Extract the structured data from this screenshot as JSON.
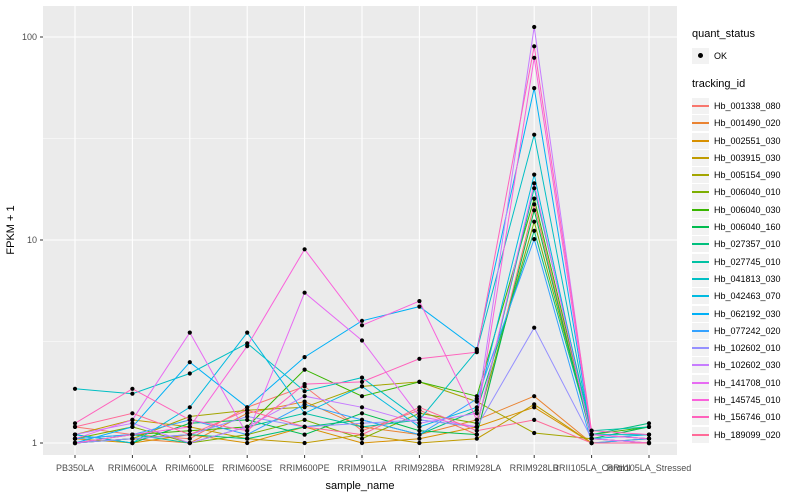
{
  "chart_data": {
    "type": "line",
    "title": "",
    "xlabel": "sample_name",
    "ylabel": "FPKM + 1",
    "y_scale": "log10",
    "y_ticks": [
      "1",
      "10",
      "100"
    ],
    "y_tick_values": [
      1,
      10,
      100
    ],
    "y_minor_values": [
      3.1623,
      31.623
    ],
    "ylim_log": [
      0.9,
      141
    ],
    "grid": "on",
    "panel_bg": "#EBEBEB",
    "grid_color": "#FFFFFF",
    "point_color": "#000000",
    "axis_text_color": "#4D4D4D",
    "legend_position": "right",
    "categories": [
      "PB350LA",
      "RRIM600LA",
      "RRIM600LE",
      "RRIM600SE",
      "RRIM600PE",
      "RRIM901LA",
      "RRIM928BA",
      "RRIM928LA",
      "RRIM928LB",
      "RRII105LA_Control",
      "RRII105LA_Stressed"
    ],
    "legend": {
      "quant_status_title": "quant_status",
      "quant_status_entries": [
        "OK"
      ],
      "tracking_id_title": "tracking_id"
    },
    "series": [
      {
        "name": "Hb_001338_080",
        "color": "#F8766D",
        "values": [
          1.2,
          1.1,
          1.05,
          1.5,
          1.9,
          1.15,
          1.45,
          1.1,
          15,
          1.05,
          1.0
        ]
      },
      {
        "name": "Hb_001490_020",
        "color": "#EA8331",
        "values": [
          1.0,
          1.05,
          1.0,
          1.4,
          1.6,
          1.2,
          1.1,
          1.3,
          1.7,
          1.0,
          1.0
        ]
      },
      {
        "name": "Hb_002551_030",
        "color": "#D89000",
        "values": [
          1.05,
          1.0,
          1.1,
          1.0,
          1.2,
          1.0,
          1.05,
          1.2,
          1.5,
          1.0,
          1.0
        ]
      },
      {
        "name": "Hb_003915_030",
        "color": "#C09B00",
        "values": [
          1.1,
          1.3,
          1.2,
          1.05,
          1.0,
          1.1,
          1.0,
          1.05,
          1.55,
          1.0,
          1.05
        ]
      },
      {
        "name": "Hb_005154_090",
        "color": "#A3A500",
        "values": [
          1.0,
          1.05,
          1.35,
          1.45,
          1.5,
          1.9,
          2.0,
          1.6,
          1.12,
          1.05,
          1.0
        ]
      },
      {
        "name": "Hb_006040_010",
        "color": "#7CAE00",
        "values": [
          1.05,
          1.2,
          1.0,
          1.1,
          1.3,
          1.05,
          1.4,
          1.25,
          12.3,
          1.1,
          1.05
        ]
      },
      {
        "name": "Hb_006040_030",
        "color": "#39B600",
        "values": [
          1.0,
          1.1,
          1.15,
          1.2,
          2.3,
          1.7,
          2.0,
          1.7,
          16,
          1.1,
          1.2
        ]
      },
      {
        "name": "Hb_006040_160",
        "color": "#00BB4E",
        "values": [
          1.1,
          1.0,
          1.25,
          1.3,
          1.1,
          1.4,
          1.15,
          1.1,
          14,
          1.05,
          1.2
        ]
      },
      {
        "name": "Hb_027357_010",
        "color": "#00BF7D",
        "values": [
          1.0,
          1.05,
          1.1,
          1.05,
          1.2,
          1.3,
          1.1,
          1.45,
          11.1,
          1.1,
          1.25
        ]
      },
      {
        "name": "Hb_027745_010",
        "color": "#00C1A3",
        "values": [
          1.05,
          1.1,
          1.0,
          1.2,
          1.4,
          1.2,
          1.3,
          1.2,
          18,
          1.15,
          1.2
        ]
      },
      {
        "name": "Hb_041813_030",
        "color": "#00BFC4",
        "values": [
          1.85,
          1.75,
          2.2,
          3.1,
          1.8,
          2.1,
          1.3,
          2.85,
          33,
          1.1,
          1.1
        ]
      },
      {
        "name": "Hb_042463_070",
        "color": "#00BAE0",
        "values": [
          1.1,
          1.0,
          1.5,
          3.5,
          1.4,
          1.9,
          1.2,
          1.5,
          21,
          1.05,
          1.1
        ]
      },
      {
        "name": "Hb_062192_030",
        "color": "#00B0F6",
        "values": [
          1.0,
          1.2,
          2.5,
          1.5,
          2.65,
          4.0,
          4.7,
          2.9,
          56,
          1.1,
          1.05
        ]
      },
      {
        "name": "Hb_077242_020",
        "color": "#35A2FF",
        "values": [
          1.05,
          1.1,
          1.3,
          1.1,
          1.55,
          1.3,
          1.1,
          1.65,
          10.1,
          1.0,
          1.05
        ]
      },
      {
        "name": "Hb_102602_010",
        "color": "#9590FF",
        "values": [
          1.0,
          1.05,
          1.1,
          1.35,
          1.2,
          1.25,
          1.3,
          1.2,
          3.7,
          1.05,
          1.0
        ]
      },
      {
        "name": "Hb_102602_030",
        "color": "#C77CFF",
        "values": [
          1.1,
          1.25,
          1.0,
          1.2,
          1.7,
          1.5,
          1.25,
          1.4,
          112,
          1.1,
          1.05
        ]
      },
      {
        "name": "Hb_141708_010",
        "color": "#E76BF3",
        "values": [
          1.05,
          1.3,
          3.5,
          1.1,
          5.5,
          3.2,
          1.35,
          1.2,
          19,
          1.05,
          1.0
        ]
      },
      {
        "name": "Hb_145745_010",
        "color": "#FA62DB",
        "values": [
          1.0,
          1.1,
          1.2,
          3.0,
          9.0,
          3.8,
          5.0,
          1.3,
          79,
          1.1,
          1.05
        ]
      },
      {
        "name": "Hb_156746_010",
        "color": "#FF62BC",
        "values": [
          1.25,
          1.85,
          1.3,
          1.15,
          1.95,
          2.0,
          2.6,
          2.8,
          90,
          1.15,
          1.1
        ]
      },
      {
        "name": "Hb_189099_020",
        "color": "#FF6A98",
        "values": [
          1.2,
          1.4,
          1.1,
          1.45,
          1.2,
          1.1,
          1.5,
          1.15,
          1.3,
          1.0,
          1.0
        ]
      }
    ]
  }
}
